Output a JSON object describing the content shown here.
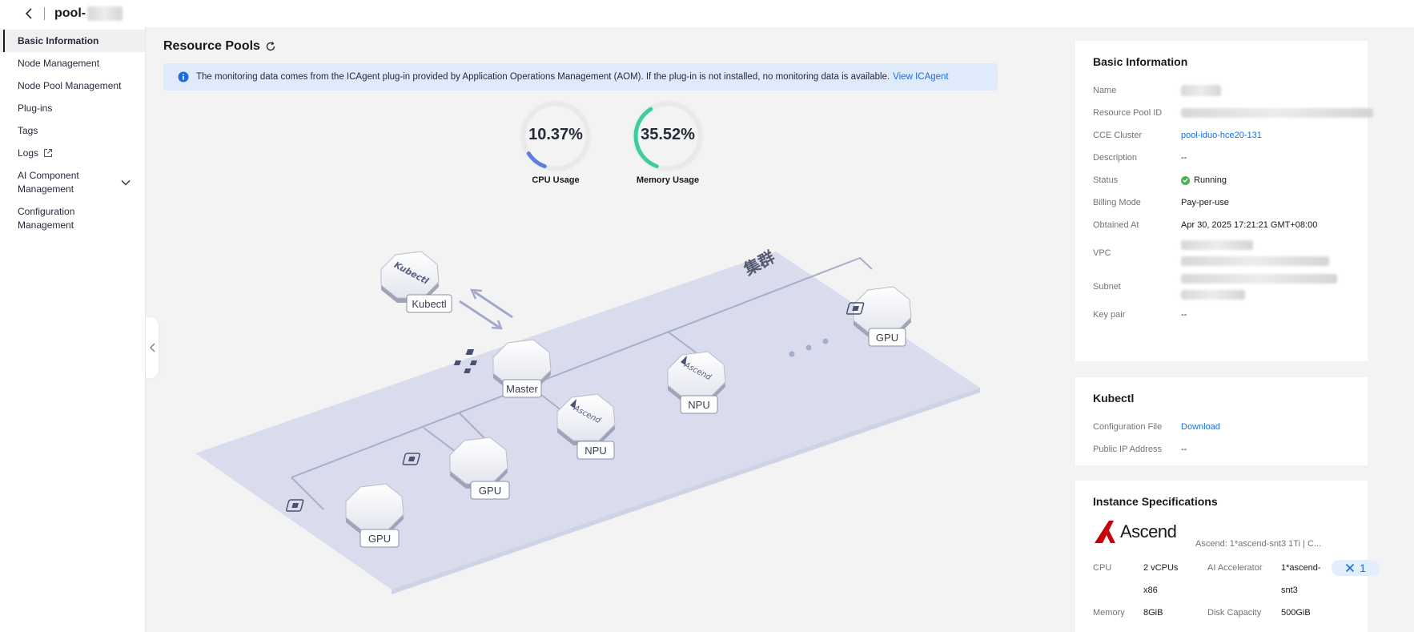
{
  "header": {
    "title_prefix": "pool-"
  },
  "sidebar": {
    "items": [
      {
        "label": "Basic Information",
        "active": true
      },
      {
        "label": "Node Management"
      },
      {
        "label": "Node Pool Management"
      },
      {
        "label": "Plug-ins"
      },
      {
        "label": "Tags"
      },
      {
        "label": "Logs"
      },
      {
        "label_line1": "AI Component",
        "label_line2": "Management"
      },
      {
        "label_line1": "Configuration",
        "label_line2": "Management"
      }
    ]
  },
  "main": {
    "title": "Resource Pools",
    "notice": {
      "text": "The monitoring data comes from the ICAgent plug-in provided by Application Operations Management (AOM). If the plug-in is not installed, no monitoring data is available.",
      "link": "View ICAgent"
    },
    "gauges": [
      {
        "value_text": "10.37%",
        "value": 10.37,
        "label": "CPU Usage",
        "color": "#5b7fe0"
      },
      {
        "value_text": "35.52%",
        "value": 35.52,
        "label": "Memory Usage",
        "color": "#3ccf9a"
      }
    ],
    "diagram": {
      "cluster_label": "集群",
      "nodes": [
        {
          "label": "Kubectl",
          "kind": "kubectl"
        },
        {
          "label": "Master",
          "kind": "master"
        },
        {
          "label": "NPU",
          "kind": "npu"
        },
        {
          "label": "NPU",
          "kind": "npu"
        },
        {
          "label": "GPU",
          "kind": "gpu"
        },
        {
          "label": "GPU",
          "kind": "gpu"
        },
        {
          "label": "GPU",
          "kind": "gpu"
        }
      ],
      "hex_top_text": {
        "kubectl": "Kubectl",
        "ascend": "Ascend"
      }
    }
  },
  "basic_info": {
    "title": "Basic Information",
    "fields": {
      "name": "Name",
      "pool_id": "Resource Pool ID",
      "cluster": "CCE Cluster",
      "cluster_value": "pool-iduo-hce20-131",
      "description": "Description",
      "description_value": "--",
      "status": "Status",
      "status_value": "Running",
      "billing": "Billing Mode",
      "billing_value": "Pay-per-use",
      "obtained": "Obtained At",
      "obtained_value": "Apr 30, 2025 17:21:21 GMT+08:00",
      "vpc": "VPC",
      "subnet": "Subnet",
      "keypair": "Key pair",
      "keypair_value": "--"
    }
  },
  "kubectl": {
    "title": "Kubectl",
    "config_file": "Configuration File",
    "config_file_link": "Download",
    "public_ip": "Public IP Address",
    "public_ip_value": "--"
  },
  "instance_specs": {
    "title": "Instance Specifications",
    "brand": "Ascend",
    "brand_color": "#c7000b",
    "summary": "Ascend: 1*ascend-snt3 1Ti | C...",
    "cpu_label": "CPU",
    "cpu_value_line1": "2 vCPUs",
    "cpu_value_line2": "x86",
    "accel_label": "AI Accelerator",
    "accel_value_line1": "1*ascend-",
    "accel_value_line2": "snt3",
    "quantity": "1",
    "memory_label": "Memory",
    "memory_value": "8GiB",
    "disk_label": "Disk Capacity",
    "disk_value": "500GiB"
  }
}
